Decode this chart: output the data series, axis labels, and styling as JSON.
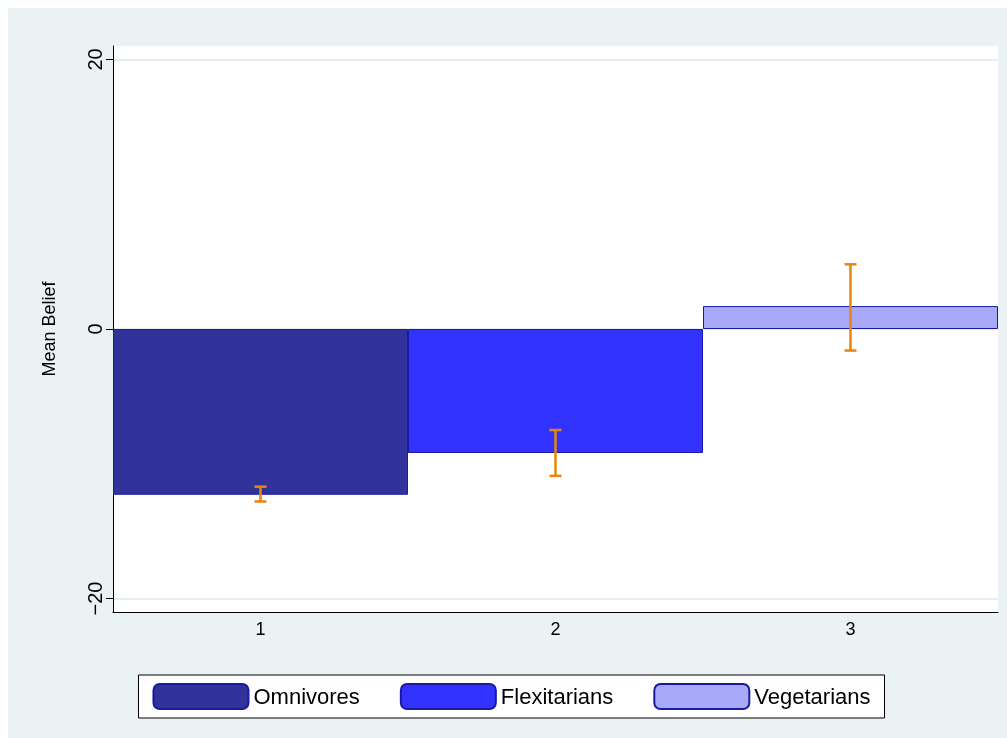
{
  "chart_data": {
    "type": "bar",
    "ylabel": "Mean Belief",
    "categories": [
      "1",
      "2",
      "3"
    ],
    "series": [
      {
        "name": "Omnivores",
        "color": "#32339a",
        "values": [
          -12.3,
          null,
          null
        ],
        "errors": [
          [
            -12.8,
            -11.7
          ],
          null,
          null
        ]
      },
      {
        "name": "Flexitarians",
        "color": "#3333ff",
        "values": [
          null,
          -9.2,
          null
        ],
        "errors": [
          null,
          [
            -10.9,
            -7.5
          ],
          null
        ]
      },
      {
        "name": "Vegetarians",
        "color": "#a9a9f9",
        "values": [
          null,
          null,
          1.7
        ],
        "errors": [
          null,
          null,
          [
            -1.6,
            4.8
          ]
        ]
      }
    ],
    "ylim": [
      -21,
      21
    ],
    "yticks": [
      {
        "value": -20,
        "label": "−20"
      },
      0,
      20
    ],
    "grid": "y",
    "legend": "bottom"
  }
}
